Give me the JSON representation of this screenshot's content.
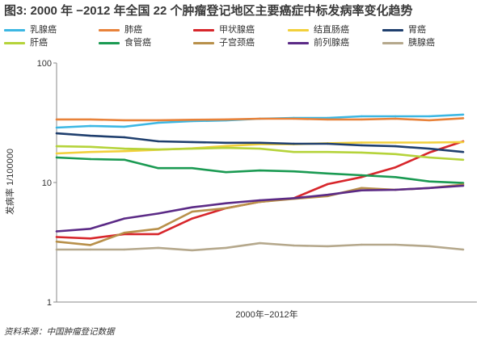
{
  "chart_data": {
    "type": "line",
    "title": "图3: 2000 年 −2012 年全国 22 个肿瘤登记地区主要癌症中标发病率变化趋势",
    "xlabel": "2000年−2012年",
    "ylabel": "发病率 1/100000",
    "yscale": "log",
    "ylim": [
      1,
      100
    ],
    "yticks": [
      1,
      10,
      100
    ],
    "grid": false,
    "legend": "top",
    "x": [
      2000,
      2001,
      2002,
      2003,
      2004,
      2005,
      2006,
      2007,
      2008,
      2009,
      2010,
      2011,
      2012
    ],
    "series": [
      {
        "name": "乳腺癌",
        "color": "#3cb7e3",
        "values": [
          28.8,
          29.7,
          29.3,
          31.6,
          32.6,
          33.1,
          34.2,
          34.7,
          34.7,
          35.8,
          35.8,
          35.8,
          37.0
        ]
      },
      {
        "name": "肺癌",
        "color": "#e8823a",
        "values": [
          33.7,
          33.7,
          33.2,
          33.2,
          33.5,
          33.7,
          34.2,
          34.2,
          33.7,
          33.7,
          34.2,
          33.2,
          34.5
        ]
      },
      {
        "name": "甲状腺癌",
        "color": "#d7262b",
        "values": [
          3.5,
          3.4,
          3.7,
          3.7,
          5.0,
          6.1,
          6.9,
          7.4,
          9.7,
          11.1,
          13.4,
          17.8,
          22.1
        ]
      },
      {
        "name": "结直肠癌",
        "color": "#f2d03b",
        "values": [
          17.5,
          18.0,
          18.3,
          18.8,
          19.3,
          20.2,
          20.9,
          20.9,
          21.3,
          21.6,
          21.6,
          21.6,
          21.8
        ]
      },
      {
        "name": "胃癌",
        "color": "#1f3f6e",
        "values": [
          25.8,
          24.6,
          23.9,
          22.1,
          21.8,
          21.5,
          21.5,
          21.1,
          21.1,
          20.5,
          20.1,
          19.2,
          18.0
        ]
      },
      {
        "name": "肝癌",
        "color": "#b5d33a",
        "values": [
          20.1,
          19.9,
          19.2,
          18.9,
          19.2,
          19.5,
          19.2,
          18.0,
          18.0,
          17.8,
          17.3,
          16.2,
          15.5
        ]
      },
      {
        "name": "食管癌",
        "color": "#1a9a52",
        "values": [
          16.2,
          15.7,
          15.5,
          13.2,
          13.2,
          12.2,
          12.6,
          12.4,
          11.9,
          11.5,
          11.1,
          10.2,
          9.9
        ]
      },
      {
        "name": "子宫颈癌",
        "color": "#b8904a",
        "values": [
          3.2,
          3.0,
          3.8,
          4.1,
          5.7,
          6.1,
          6.9,
          7.3,
          7.7,
          9.0,
          8.7,
          9.0,
          9.6
        ]
      },
      {
        "name": "前列腺癌",
        "color": "#5b2a86",
        "values": [
          3.9,
          4.1,
          5.0,
          5.5,
          6.2,
          6.7,
          7.1,
          7.4,
          7.9,
          8.6,
          8.7,
          9.0,
          9.4
        ]
      },
      {
        "name": "胰腺癌",
        "color": "#b5a88c",
        "values": [
          2.75,
          2.75,
          2.75,
          2.84,
          2.71,
          2.84,
          3.11,
          2.97,
          2.93,
          3.02,
          3.02,
          2.93,
          2.75
        ]
      }
    ]
  },
  "source": "资料来源：中国肿瘤登记数据"
}
